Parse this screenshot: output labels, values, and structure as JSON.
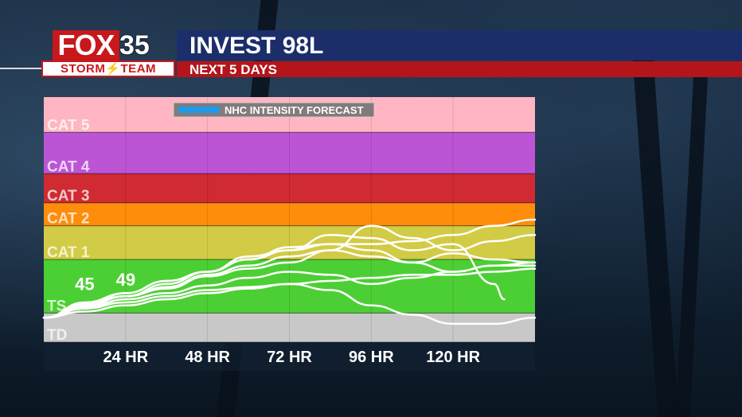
{
  "header": {
    "logo_text": "FOX",
    "logo_number": "35",
    "team_text": "STORM⚡TEAM",
    "title": "INVEST 98L",
    "subtitle": "NEXT 5 DAYS",
    "brand_red": "#c7181c",
    "title_blue": "#1c2e6a"
  },
  "chart_data": {
    "type": "line",
    "legend": {
      "label": "NHC INTENSITY FORECAST",
      "color": "#1e9be8",
      "placement": "top-center"
    },
    "x_labels": [
      "24 HR",
      "48 HR",
      "72 HR",
      "96 HR",
      "120 HR"
    ],
    "x_hours": [
      24,
      48,
      72,
      96,
      120
    ],
    "xlim": [
      0,
      144
    ],
    "ylim": [
      20,
      180
    ],
    "categories": [
      {
        "label": "TD",
        "min": 20,
        "max": 39,
        "color": "#c8c8c8"
      },
      {
        "label": "TS",
        "min": 39,
        "max": 74,
        "color": "#4ccf34"
      },
      {
        "label": "CAT 1",
        "min": 74,
        "max": 96,
        "color": "#d2cb45"
      },
      {
        "label": "CAT 2",
        "min": 96,
        "max": 111,
        "color": "#ff8c0a"
      },
      {
        "label": "CAT 3",
        "min": 111,
        "max": 130,
        "color": "#d02a32"
      },
      {
        "label": "CAT 4",
        "min": 130,
        "max": 157,
        "color": "#bb55d6"
      },
      {
        "label": "CAT 5",
        "min": 157,
        "max": 180,
        "color": "#ffb6c2"
      }
    ],
    "data_labels": [
      {
        "x": 12,
        "y": 54,
        "text": "45"
      },
      {
        "x": 24,
        "y": 57,
        "text": "49"
      }
    ],
    "series": [
      {
        "x": [
          0,
          12,
          24,
          36,
          48,
          60,
          72,
          84,
          96,
          108,
          120,
          132,
          144
        ],
        "y": [
          36,
          46,
          52,
          60,
          66,
          74,
          82,
          84,
          80,
          72,
          66,
          70,
          70
        ]
      },
      {
        "x": [
          0,
          12,
          24,
          36,
          48,
          60,
          72,
          84,
          96,
          108,
          120,
          132,
          144
        ],
        "y": [
          36,
          45,
          50,
          55,
          63,
          68,
          72,
          80,
          96,
          88,
          80,
          86,
          90
        ]
      },
      {
        "x": [
          0,
          12,
          24,
          36,
          48,
          60,
          72,
          84,
          96,
          108,
          120,
          132,
          144
        ],
        "y": [
          36,
          44,
          52,
          60,
          66,
          74,
          80,
          84,
          84,
          86,
          90,
          96,
          100
        ]
      },
      {
        "x": [
          0,
          12,
          24,
          36,
          48,
          60,
          72,
          84,
          96,
          108,
          120,
          132,
          144
        ],
        "y": [
          36,
          43,
          50,
          56,
          64,
          70,
          76,
          80,
          76,
          72,
          78,
          74,
          72
        ]
      },
      {
        "x": [
          0,
          12,
          24,
          36,
          48,
          60,
          72,
          84,
          96,
          108,
          120,
          132,
          144
        ],
        "y": [
          36,
          42,
          48,
          52,
          57,
          62,
          66,
          64,
          58,
          62,
          66,
          70,
          72
        ]
      },
      {
        "x": [
          0,
          12,
          24,
          36,
          48,
          60,
          72,
          84,
          96,
          108,
          120,
          132,
          135
        ],
        "y": [
          36,
          44,
          50,
          58,
          66,
          76,
          80,
          90,
          88,
          80,
          84,
          58,
          48
        ]
      },
      {
        "x": [
          0,
          12,
          24,
          36,
          48,
          60,
          72,
          84,
          96,
          108,
          120,
          132,
          144
        ],
        "y": [
          36,
          42,
          46,
          50,
          54,
          56,
          58,
          54,
          44,
          38,
          32,
          32,
          36
        ]
      },
      {
        "x": [
          0,
          12,
          24,
          36,
          48,
          60,
          72,
          84,
          96,
          108,
          120,
          132,
          144
        ],
        "y": [
          36,
          40,
          44,
          48,
          52,
          55,
          58,
          60,
          62,
          64,
          64,
          66,
          68
        ]
      }
    ]
  }
}
